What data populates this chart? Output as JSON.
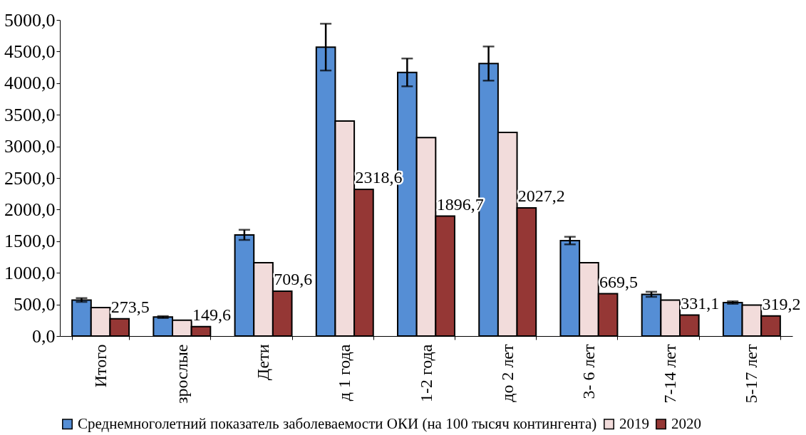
{
  "chart_data": {
    "type": "bar",
    "categories": [
      "Итого",
      "зрослые",
      "Дети",
      "д 1 года",
      "1-2 года",
      "до 2 лет",
      "3- 6 лет",
      "7-14 лет",
      "5-17 лет"
    ],
    "series": [
      {
        "name": "Среднемноголетний показатель заболеваемости ОКИ (на 100 тысяч контингента)",
        "color": "#558ed5",
        "values": [
          570,
          300,
          1600,
          4570,
          4170,
          4310,
          1510,
          660,
          530
        ],
        "errors": [
          30,
          15,
          80,
          370,
          220,
          270,
          60,
          40,
          20
        ]
      },
      {
        "name": "2019",
        "color": "#f2dcdb",
        "values": [
          450,
          250,
          1160,
          3400,
          3140,
          3220,
          1160,
          570,
          490
        ]
      },
      {
        "name": "2020",
        "color": "#953735",
        "values": [
          273.5,
          149.6,
          709.6,
          2318.6,
          1896.7,
          2027.2,
          669.5,
          331.1,
          319.2
        ],
        "value_labels": [
          "273,5",
          "149,6",
          "709,6",
          "2318,6",
          "1896,7",
          "2027,2",
          "669,5",
          "331,1",
          "319,2"
        ]
      }
    ],
    "ylim": [
      0,
      5000
    ],
    "yticks": [
      {
        "value": 0,
        "label": "0,0"
      },
      {
        "value": 500,
        "label": "500,0"
      },
      {
        "value": 1000,
        "label": "1000,0"
      },
      {
        "value": 1500,
        "label": "1500,0"
      },
      {
        "value": 2000,
        "label": "2000,0"
      },
      {
        "value": 2500,
        "label": "2500,0"
      },
      {
        "value": 3000,
        "label": "3000,0"
      },
      {
        "value": 3500,
        "label": "3500,0"
      },
      {
        "value": 4000,
        "label": "4000,0"
      },
      {
        "value": 4500,
        "label": "4500,0"
      },
      {
        "value": 5000,
        "label": "5000,0"
      }
    ],
    "grid": false,
    "legend": "bottom"
  }
}
